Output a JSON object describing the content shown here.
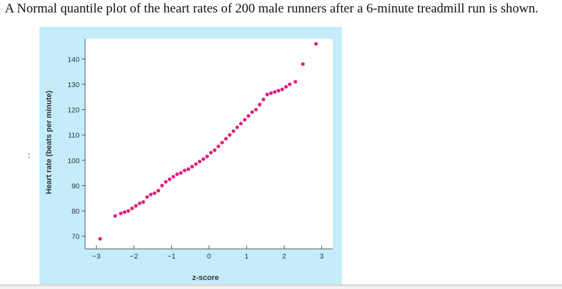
{
  "question": {
    "text": "A Normal quantile plot of the heart rates of 200 male runners after a 6-minute treadmill run is shown."
  },
  "side_marker": ":",
  "chart_data": {
    "type": "scatter",
    "title": "",
    "xlabel": "z-score",
    "ylabel": "Heart rate (beats per minute)",
    "xlim": [
      -3.3,
      3.3
    ],
    "ylim": [
      65,
      148
    ],
    "x_ticks": [
      -3,
      -2,
      -1,
      0,
      1,
      2,
      3
    ],
    "y_ticks": [
      70,
      80,
      90,
      100,
      110,
      120,
      130,
      140
    ],
    "grid": false,
    "colors": {
      "point": "#e8167f",
      "panel_background": "#c4ecfb",
      "plot_background": "#ffffff",
      "axis": "#555555"
    },
    "points": [
      {
        "x": -2.9,
        "y": 69
      },
      {
        "x": -2.5,
        "y": 78
      },
      {
        "x": -2.35,
        "y": 79
      },
      {
        "x": -2.25,
        "y": 79.5
      },
      {
        "x": -2.15,
        "y": 80
      },
      {
        "x": -2.05,
        "y": 81
      },
      {
        "x": -1.95,
        "y": 82
      },
      {
        "x": -1.85,
        "y": 83
      },
      {
        "x": -1.75,
        "y": 83.5
      },
      {
        "x": -1.65,
        "y": 85.5
      },
      {
        "x": -1.55,
        "y": 86.5
      },
      {
        "x": -1.45,
        "y": 87
      },
      {
        "x": -1.35,
        "y": 88
      },
      {
        "x": -1.25,
        "y": 90
      },
      {
        "x": -1.15,
        "y": 91.5
      },
      {
        "x": -1.05,
        "y": 92.5
      },
      {
        "x": -0.95,
        "y": 93.5
      },
      {
        "x": -0.85,
        "y": 94.5
      },
      {
        "x": -0.75,
        "y": 95
      },
      {
        "x": -0.65,
        "y": 96
      },
      {
        "x": -0.55,
        "y": 96.5
      },
      {
        "x": -0.45,
        "y": 97.5
      },
      {
        "x": -0.35,
        "y": 98.5
      },
      {
        "x": -0.25,
        "y": 99.5
      },
      {
        "x": -0.15,
        "y": 100.5
      },
      {
        "x": -0.05,
        "y": 101.5
      },
      {
        "x": 0.05,
        "y": 103
      },
      {
        "x": 0.15,
        "y": 104
      },
      {
        "x": 0.25,
        "y": 105.5
      },
      {
        "x": 0.35,
        "y": 107
      },
      {
        "x": 0.45,
        "y": 108.5
      },
      {
        "x": 0.55,
        "y": 110
      },
      {
        "x": 0.65,
        "y": 111.5
      },
      {
        "x": 0.75,
        "y": 113
      },
      {
        "x": 0.85,
        "y": 114.5
      },
      {
        "x": 0.95,
        "y": 116
      },
      {
        "x": 1.05,
        "y": 117.5
      },
      {
        "x": 1.15,
        "y": 119
      },
      {
        "x": 1.25,
        "y": 120
      },
      {
        "x": 1.35,
        "y": 122
      },
      {
        "x": 1.45,
        "y": 124
      },
      {
        "x": 1.55,
        "y": 126
      },
      {
        "x": 1.65,
        "y": 126.5
      },
      {
        "x": 1.75,
        "y": 127
      },
      {
        "x": 1.85,
        "y": 127.5
      },
      {
        "x": 1.95,
        "y": 128
      },
      {
        "x": 2.05,
        "y": 129
      },
      {
        "x": 2.15,
        "y": 130
      },
      {
        "x": 2.3,
        "y": 131
      },
      {
        "x": 2.5,
        "y": 138
      },
      {
        "x": 2.85,
        "y": 146
      }
    ]
  }
}
